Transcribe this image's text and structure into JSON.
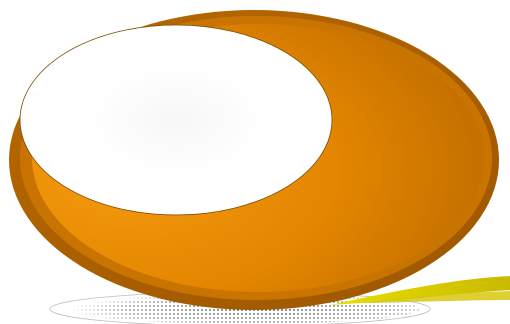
{
  "graphic": {
    "colors": {
      "orange_outer": "#c46f00",
      "orange_light": "#f29400",
      "orange_dark": "#b96400",
      "highlight": "#ffffff",
      "shadow_dot": "#3a3a3a",
      "swoosh_yellow": "#e8d800",
      "swoosh_olive": "#b7a800"
    },
    "icons": [
      "orange-ellipse-icon",
      "white-highlight-icon",
      "dotted-shadow-icon",
      "yellow-swoosh-icon"
    ]
  }
}
